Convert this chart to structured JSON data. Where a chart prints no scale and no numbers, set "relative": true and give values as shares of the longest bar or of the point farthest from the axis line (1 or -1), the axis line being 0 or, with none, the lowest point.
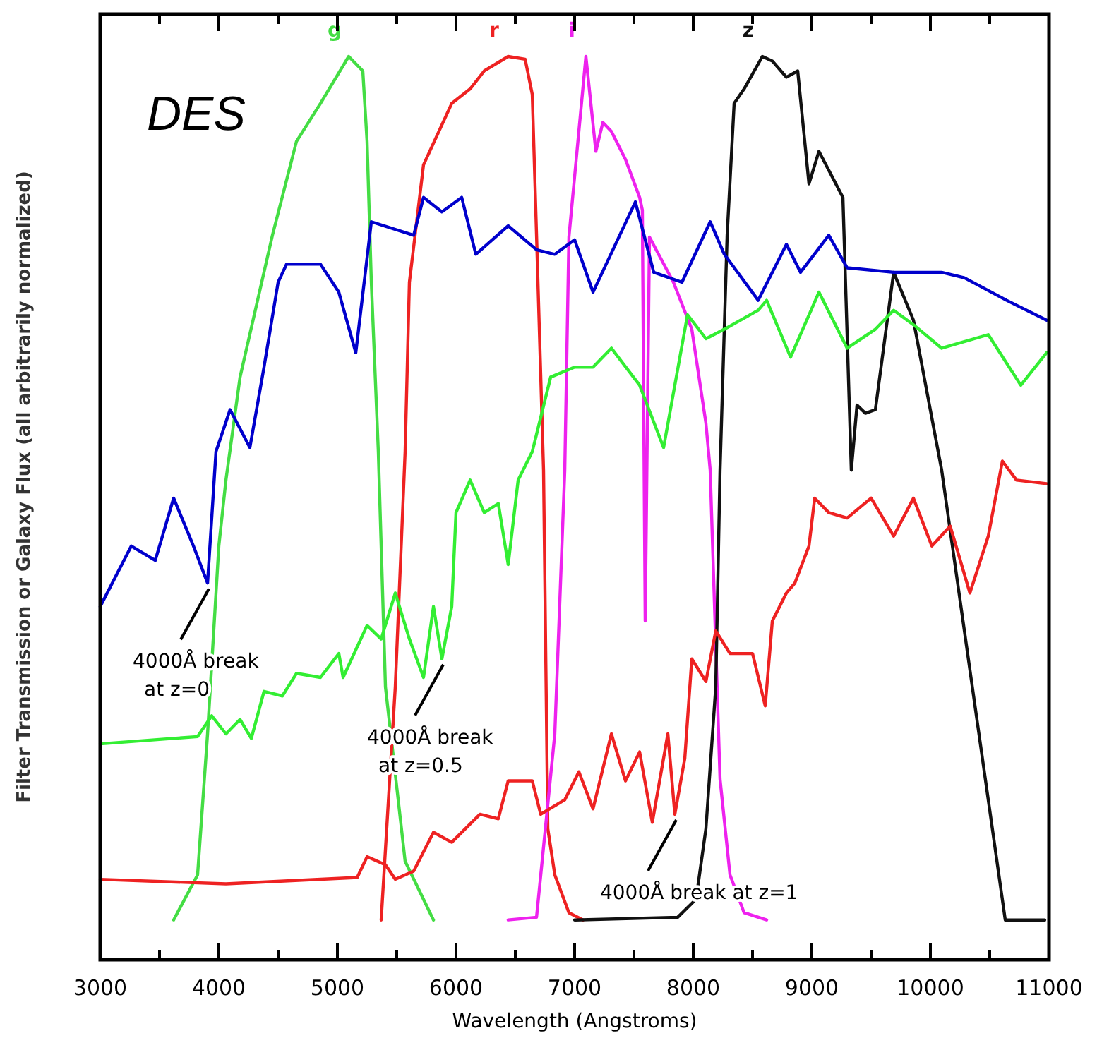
{
  "chart_data": {
    "type": "line",
    "relative": true,
    "xlabel": "Wavelength (Angstroms)",
    "ylabel": "Filter Transmission or Galaxy Flux (all arbitrarily normalized)",
    "xlim": [
      3000,
      11000
    ],
    "xticks": [
      3000,
      {
        "value": 3500,
        "label": null
      },
      4000,
      {
        "value": 4500,
        "label": null
      },
      5000,
      {
        "value": 5500,
        "label": null
      },
      6000,
      {
        "value": 6500,
        "label": null
      },
      7000,
      {
        "value": 7500,
        "label": null
      },
      8000,
      {
        "value": 8500,
        "label": null
      },
      9000,
      {
        "value": 9500,
        "label": null
      },
      10000,
      {
        "value": 10500,
        "label": null
      },
      11000
    ],
    "grid": false,
    "legend": false,
    "marker": "none",
    "line_style": "solid",
    "annotations": [
      "DES",
      {
        "text": "4000Å break\nat z=0",
        "x": 3905,
        "y": 0.417
      },
      {
        "text": "4000Å break\nat z=0.5",
        "x": 5881,
        "y": 0.333
      },
      {
        "text": "4000Å break at z=1",
        "x": 7845,
        "y": 0.161
      }
    ],
    "series": [
      {
        "name": "g",
        "color": "#44dd44",
        "x": [
          3619,
          3821,
          3905,
          4000,
          4060,
          4179,
          4452,
          4655,
          4857,
          5095,
          5214,
          5250,
          5286,
          5345,
          5405,
          5571,
          5810
        ],
        "values": [
          0.044,
          0.094,
          0.25,
          0.458,
          0.531,
          0.645,
          0.802,
          0.906,
          0.948,
          1.0,
          0.984,
          0.906,
          0.75,
          0.5625,
          0.302,
          0.109,
          0.044
        ]
      },
      {
        "name": "r",
        "color": "#ee2222",
        "x": [
          5369,
          5488,
          5571,
          5607,
          5726,
          5964,
          6119,
          6238,
          6440,
          6583,
          6643,
          6679,
          6738,
          6774,
          6833,
          6952,
          7071
        ],
        "values": [
          0.044,
          0.302,
          0.5625,
          0.75,
          0.88,
          0.948,
          0.964,
          0.984,
          1.0,
          0.997,
          0.958,
          0.802,
          0.542,
          0.145,
          0.094,
          0.052,
          0.044
        ]
      },
      {
        "name": "i",
        "color": "#ee22ee",
        "x": [
          6440,
          6679,
          6833,
          6917,
          6952,
          7095,
          7179,
          7238,
          7310,
          7429,
          7548,
          7571,
          7595,
          7631,
          7833,
          7988,
          8107,
          8143,
          8226,
          8310,
          8429,
          8619
        ],
        "values": [
          0.044,
          0.047,
          0.25,
          0.542,
          0.8,
          1.0,
          0.895,
          0.927,
          0.917,
          0.886,
          0.844,
          0.83,
          0.375,
          0.8,
          0.75,
          0.698,
          0.594,
          0.542,
          0.2,
          0.094,
          0.052,
          0.044
        ]
      },
      {
        "name": "z",
        "color": "#111111",
        "x": [
          7000,
          7869,
          8024,
          8107,
          8190,
          8226,
          8286,
          8345,
          8429,
          8583,
          8667,
          8786,
          8881,
          8976,
          9060,
          9262,
          9333,
          9381,
          9452,
          9536,
          9690,
          9857,
          10095,
          10631,
          10964
        ],
        "values": [
          0.044,
          0.047,
          0.067,
          0.145,
          0.302,
          0.542,
          0.802,
          0.948,
          0.964,
          1.0,
          0.995,
          0.977,
          0.984,
          0.859,
          0.895,
          0.844,
          0.542,
          0.614,
          0.605,
          0.609,
          0.761,
          0.708,
          0.542,
          0.044,
          0.044
        ]
      },
      {
        "color": "#0000cc",
        "x": [
          3000,
          3262,
          3464,
          3619,
          3786,
          3905,
          3976,
          4095,
          4262,
          4381,
          4500,
          4571,
          4857,
          5012,
          5155,
          5250,
          5286,
          5643,
          5726,
          5881,
          6048,
          6167,
          6440,
          6679,
          6833,
          7000,
          7155,
          7512,
          7667,
          7905,
          8143,
          8262,
          8548,
          8786,
          8905,
          9143,
          9298,
          9690,
          10095,
          10286,
          10643,
          10980
        ],
        "values": [
          0.391,
          0.458,
          0.442,
          0.511,
          0.458,
          0.417,
          0.5625,
          0.609,
          0.567,
          0.656,
          0.75,
          0.77,
          0.77,
          0.739,
          0.672,
          0.777,
          0.817,
          0.802,
          0.844,
          0.828,
          0.844,
          0.781,
          0.8125,
          0.786,
          0.781,
          0.797,
          0.739,
          0.839,
          0.761,
          0.75,
          0.817,
          0.781,
          0.73,
          0.792,
          0.761,
          0.802,
          0.766,
          0.761,
          0.761,
          0.755,
          0.73,
          0.708
        ]
      },
      {
        "color": "#33ee33",
        "x": [
          3000,
          3821,
          3940,
          4060,
          4179,
          4274,
          4381,
          4536,
          4655,
          4857,
          5012,
          5048,
          5250,
          5369,
          5488,
          5607,
          5726,
          5810,
          5881,
          5964,
          6000,
          6119,
          6238,
          6357,
          6440,
          6524,
          6643,
          6798,
          7000,
          7155,
          7310,
          7548,
          7750,
          7952,
          8107,
          8262,
          8548,
          8619,
          8821,
          9060,
          9298,
          9536,
          9690,
          9857,
          10095,
          10488,
          10762,
          10980
        ],
        "values": [
          0.239,
          0.247,
          0.27,
          0.25,
          0.266,
          0.245,
          0.297,
          0.292,
          0.317,
          0.3125,
          0.339,
          0.3125,
          0.37,
          0.355,
          0.406,
          0.355,
          0.3125,
          0.391,
          0.333,
          0.391,
          0.495,
          0.531,
          0.495,
          0.505,
          0.4375,
          0.531,
          0.5625,
          0.645,
          0.656,
          0.656,
          0.677,
          0.636,
          0.567,
          0.714,
          0.6875,
          0.698,
          0.719,
          0.73,
          0.667,
          0.739,
          0.677,
          0.698,
          0.719,
          0.703,
          0.677,
          0.692,
          0.636,
          0.672
        ]
      },
      {
        "color": "#ee2222",
        "x": [
          3000,
          4060,
          5167,
          5250,
          5405,
          5488,
          5643,
          5810,
          5964,
          6202,
          6357,
          6440,
          6643,
          6714,
          6917,
          7036,
          7155,
          7310,
          7429,
          7548,
          7655,
          7786,
          7845,
          7929,
          7988,
          8107,
          8190,
          8310,
          8500,
          8607,
          8667,
          8786,
          8857,
          8976,
          9024,
          9143,
          9298,
          9500,
          9690,
          9857,
          10012,
          10167,
          10333,
          10488,
          10607,
          10726,
          10980
        ],
        "values": [
          0.089,
          0.084,
          0.091,
          0.114,
          0.105,
          0.089,
          0.098,
          0.141,
          0.13,
          0.161,
          0.156,
          0.198,
          0.198,
          0.161,
          0.177,
          0.208,
          0.167,
          0.25,
          0.198,
          0.23,
          0.152,
          0.25,
          0.161,
          0.223,
          0.333,
          0.308,
          0.364,
          0.339,
          0.339,
          0.281,
          0.375,
          0.406,
          0.417,
          0.458,
          0.511,
          0.495,
          0.489,
          0.511,
          0.469,
          0.511,
          0.458,
          0.48,
          0.406,
          0.469,
          0.552,
          0.531,
          0.527
        ]
      }
    ]
  }
}
